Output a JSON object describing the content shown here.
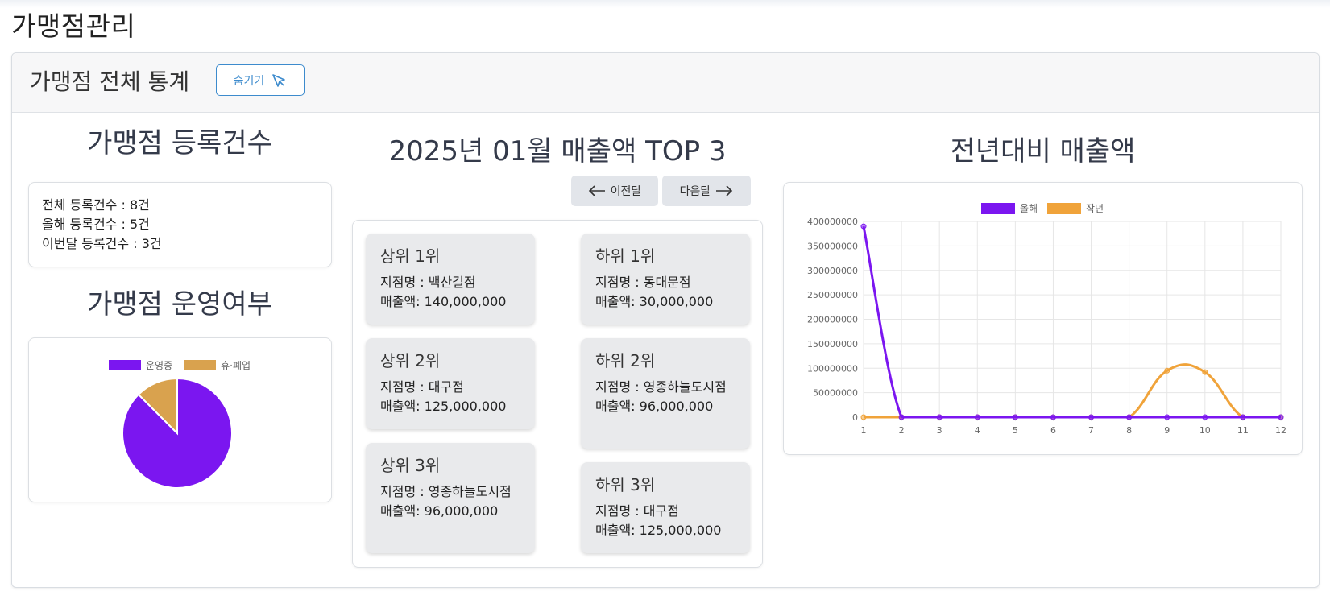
{
  "page": {
    "title": "가맹점관리"
  },
  "header": {
    "title": "가맹점 전체 통계",
    "hide_label": "숨기기"
  },
  "registration": {
    "title": "가맹점 등록건수",
    "total": "전체 등록건수 : 8건",
    "this_year": "올해 등록건수 : 5건",
    "this_month": "이번달 등록건수 : 3건"
  },
  "operation": {
    "title": "가맹점 운영여부",
    "legend": [
      {
        "label": "운영중",
        "color": "#7b16f0"
      },
      {
        "label": "휴·폐업",
        "color": "#d9a24e"
      }
    ]
  },
  "top3": {
    "title": "2025년 01월 매출액 TOP 3",
    "prev_label": "이전달",
    "next_label": "다음달",
    "upper": [
      {
        "rank": "상위 1위",
        "branch": "지점명 : 백산길점",
        "sales": "매출액: 140,000,000"
      },
      {
        "rank": "상위 2위",
        "branch": "지점명 : 대구점",
        "sales": "매출액: 125,000,000"
      },
      {
        "rank": "상위 3위",
        "branch": "지점명 : 영종하늘도시점",
        "sales": "매출액: 96,000,000"
      }
    ],
    "lower": [
      {
        "rank": "하위 1위",
        "branch": "지점명 : 동대문점",
        "sales": "매출액: 30,000,000"
      },
      {
        "rank": "하위 2위",
        "branch": "지점명 : 영종하늘도시점",
        "sales": "매출액: 96,000,000"
      },
      {
        "rank": "하위 3위",
        "branch": "지점명 : 대구점",
        "sales": "매출액: 125,000,000"
      }
    ]
  },
  "yoy": {
    "title": "전년대비 매출액"
  },
  "chart_data": [
    {
      "type": "pie",
      "labels": [
        "운영중",
        "휴·폐업"
      ],
      "values": [
        7,
        1
      ],
      "colors": [
        "#7b16f0",
        "#d9a24e"
      ],
      "legend": "top"
    },
    {
      "type": "line",
      "x": [
        1,
        2,
        3,
        4,
        5,
        6,
        7,
        8,
        9,
        10,
        11,
        12
      ],
      "series": [
        {
          "name": "올해",
          "color": "#7b16f0",
          "values": [
            390000000,
            0,
            0,
            0,
            0,
            0,
            0,
            0,
            0,
            0,
            0,
            0
          ]
        },
        {
          "name": "작년",
          "color": "#f0a33a",
          "values": [
            0,
            0,
            0,
            0,
            0,
            0,
            0,
            0,
            95000000,
            92000000,
            0,
            0
          ]
        }
      ],
      "ylim": [
        0,
        400000000
      ],
      "yticks": [
        "0",
        "50000000",
        "100000000",
        "150000000",
        "200000000",
        "250000000",
        "300000000",
        "350000000",
        "400000000"
      ],
      "grid": true,
      "legend": "top"
    }
  ]
}
